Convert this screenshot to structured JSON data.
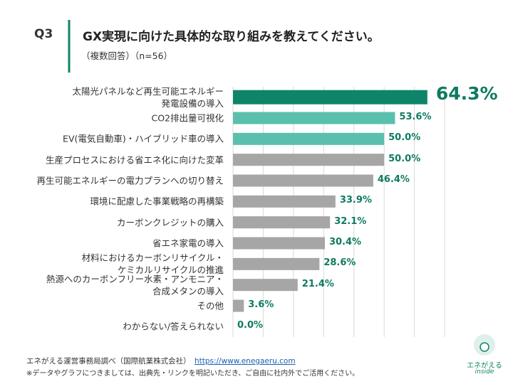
{
  "header": {
    "question": "Q3",
    "title": "GX実現に向けた具体的な取り組みを教えてください。",
    "subtitle": "（複数回答）（n=56）"
  },
  "chart_data": {
    "type": "hbar",
    "categories": [
      "太陽光パネルなど再生可能エネルギー\n発電設備の導入",
      "CO2排出量可視化",
      "EV(電気自動車)・ハイブリッド車の導入",
      "生産プロセスにおける省エネ化に向けた変革",
      "再生可能エネルギーの電力プランへの切り替え",
      "環境に配慮した事業戦略の再構築",
      "カーボンクレジットの購入",
      "省エネ家電の導入",
      "材料におけるカーボンリサイクル・\nケミカルリサイクルの推進",
      "熱源へのカーボンフリー水素・アンモニア・\n合成メタンの導入",
      "その他",
      "わからない/答えられない"
    ],
    "values": [
      64.3,
      53.6,
      50.0,
      50.0,
      46.4,
      33.9,
      32.1,
      30.4,
      28.6,
      21.4,
      3.6,
      0.0
    ],
    "value_labels": [
      "64.3%",
      "53.6%",
      "50.0%",
      "50.0%",
      "46.4%",
      "33.9%",
      "32.1%",
      "30.4%",
      "28.6%",
      "21.4%",
      "3.6%",
      "0.0%"
    ],
    "colors": [
      "#0e8468",
      "#5bbfad",
      "#5bbfad",
      "#a6a6a6",
      "#a6a6a6",
      "#a6a6a6",
      "#a6a6a6",
      "#a6a6a6",
      "#a6a6a6",
      "#a6a6a6",
      "#a6a6a6",
      "#a6a6a6"
    ],
    "highlight": 0,
    "xlim": [
      0,
      70
    ],
    "xticks": [
      0,
      10,
      20,
      30,
      40,
      50,
      60,
      70
    ],
    "grid": true
  },
  "footer": {
    "source": "エネがえる運営事務局調べ（国際航業株式会社）",
    "url": "https://www.enegaeru.com",
    "note": "※データやグラフにつきましては、出典先・リンクを明記いただき、ご自由に社内外でご活用ください。"
  },
  "logo": {
    "name": "エネがえる",
    "sub": "inside"
  }
}
